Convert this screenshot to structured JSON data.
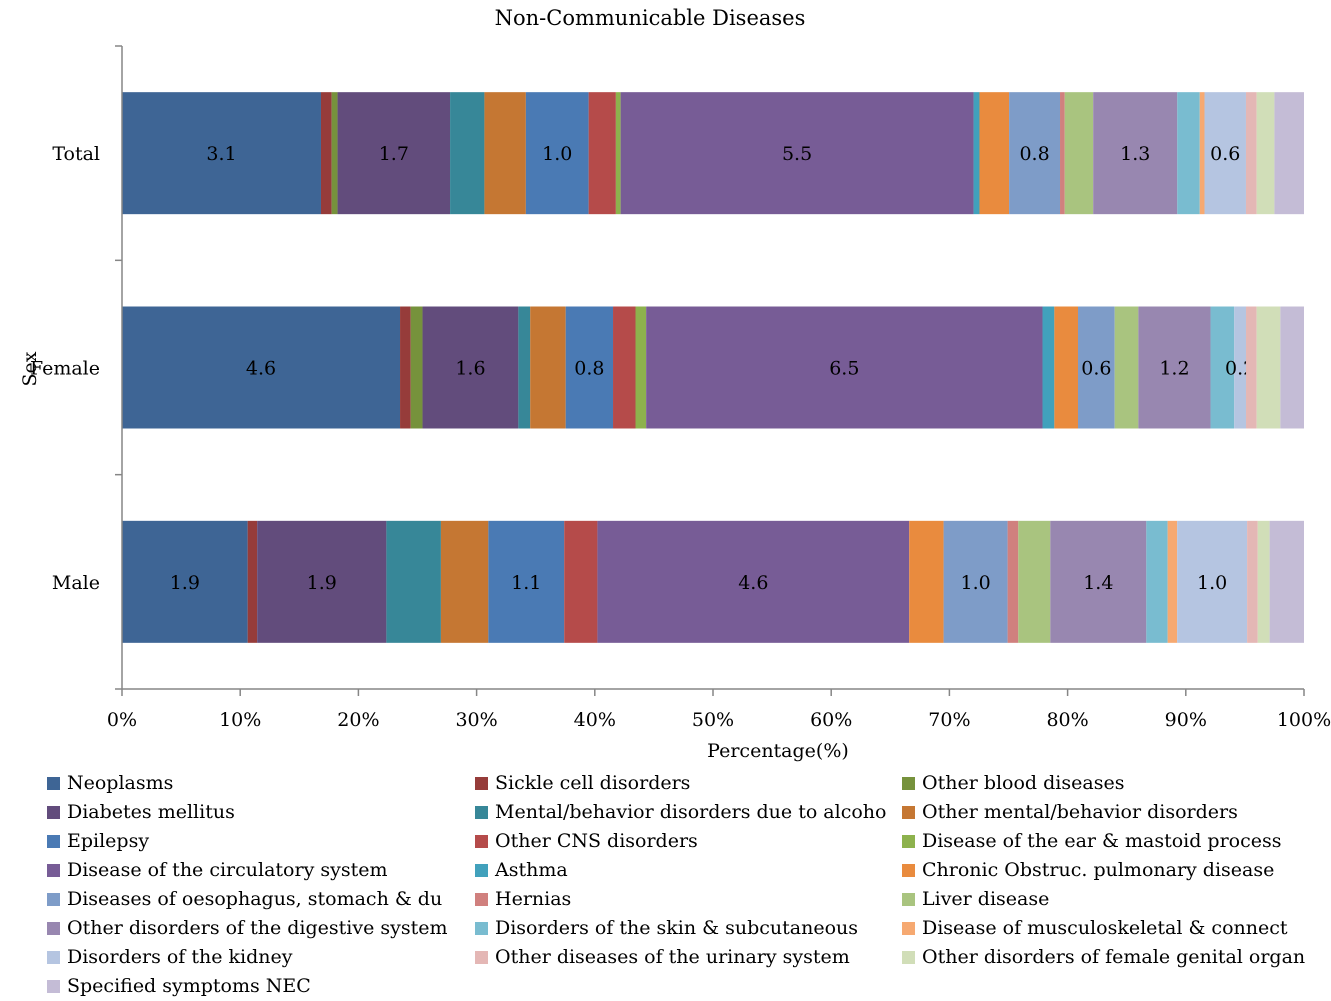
{
  "chart_data": {
    "type": "bar",
    "orientation": "horizontal",
    "stacked": "percent",
    "title": "Non-Communicable Diseases",
    "xlabel": "Percentage(%)",
    "ylabel": "Sex",
    "categories": [
      "Total",
      "Female",
      "Male"
    ],
    "x_ticks": [
      "0%",
      "10%",
      "20%",
      "30%",
      "40%",
      "50%",
      "60%",
      "70%",
      "80%",
      "90%",
      "100%"
    ],
    "xlim": [
      0,
      100
    ],
    "legend_position": "bottom",
    "series": [
      {
        "name": "Neoplasms",
        "color": "#3e6595",
        "values": [
          16.8,
          23.5,
          10.6
        ],
        "labels": [
          "3.1",
          "4.6",
          "1.9"
        ]
      },
      {
        "name": "Sickle cell disorders",
        "color": "#963c3a",
        "values": [
          0.9,
          0.9,
          0.8
        ],
        "labels": [
          "",
          "",
          ""
        ]
      },
      {
        "name": "Other blood diseases",
        "color": "#76923c",
        "values": [
          0.5,
          1.0,
          0
        ],
        "labels": [
          "",
          "",
          ""
        ]
      },
      {
        "name": "Diabetes mellitus",
        "color": "#624c7c",
        "values": [
          9.5,
          8.1,
          10.9
        ],
        "labels": [
          "1.7",
          "1.6",
          "1.9"
        ]
      },
      {
        "name": "Mental/behavior disorders due to alcoho",
        "color": "#378798",
        "values": [
          2.9,
          1.0,
          4.6
        ],
        "labels": [
          "",
          "",
          ""
        ]
      },
      {
        "name": "Other mental/behavior disorders",
        "color": "#c57733",
        "values": [
          3.5,
          3.0,
          4.0
        ],
        "labels": [
          "",
          "",
          ""
        ]
      },
      {
        "name": "Epilepsy",
        "color": "#4a7ab4",
        "values": [
          5.3,
          4.0,
          6.4
        ],
        "labels": [
          "1.0",
          "0.8",
          "1.1"
        ]
      },
      {
        "name": "Other CNS disorders",
        "color": "#b54b4a",
        "values": [
          2.3,
          1.9,
          2.8
        ],
        "labels": [
          "",
          "",
          ""
        ]
      },
      {
        "name": "Disease of the ear & mastoid process",
        "color": "#8db24d",
        "values": [
          0.4,
          0.9,
          0
        ],
        "labels": [
          "",
          "",
          ""
        ]
      },
      {
        "name": "Disease of the circulatory system",
        "color": "#775c96",
        "values": [
          29.8,
          33.5,
          26.3
        ],
        "labels": [
          "5.5",
          "6.5",
          "4.6"
        ]
      },
      {
        "name": "Asthma",
        "color": "#41a1bc",
        "values": [
          0.5,
          1.0,
          0
        ],
        "labels": [
          "",
          "",
          ""
        ]
      },
      {
        "name": "Chronic Obstruc. pulmonary disease",
        "color": "#e98b3e",
        "values": [
          2.5,
          2.0,
          2.9
        ],
        "labels": [
          "",
          "",
          ""
        ]
      },
      {
        "name": "Diseases of oesophagus, stomach & du",
        "color": "#7e9cc8",
        "values": [
          4.3,
          3.1,
          5.4
        ],
        "labels": [
          "0.8",
          "0.6",
          "1.0"
        ]
      },
      {
        "name": "Hernias",
        "color": "#d0807e",
        "values": [
          0.4,
          0,
          0.9
        ],
        "labels": [
          "",
          "",
          ""
        ]
      },
      {
        "name": "Liver disease",
        "color": "#a9c47f",
        "values": [
          2.4,
          2.0,
          2.7
        ],
        "labels": [
          "",
          "",
          ""
        ]
      },
      {
        "name": "Other disorders of the digestive system",
        "color": "#9887b0",
        "values": [
          7.1,
          6.1,
          8.1
        ],
        "labels": [
          "1.3",
          "1.2",
          "1.4"
        ]
      },
      {
        "name": "Disorders of the skin & subcutaneous",
        "color": "#79bcd0",
        "values": [
          1.9,
          2.0,
          1.8
        ],
        "labels": [
          "",
          "",
          ""
        ]
      },
      {
        "name": "Disease of musculoskeletal & connect",
        "color": "#f6a971",
        "values": [
          0.4,
          0,
          0.8
        ],
        "labels": [
          "",
          "",
          ""
        ]
      },
      {
        "name": "Disorders of the kidney",
        "color": "#b5c5e1",
        "values": [
          3.5,
          1.0,
          5.9
        ],
        "labels": [
          "0.6",
          "0.2",
          "1.0"
        ]
      },
      {
        "name": "Other diseases of the urinary system",
        "color": "#e4b7b5",
        "values": [
          0.9,
          0.9,
          0.9
        ],
        "labels": [
          "",
          "",
          ""
        ]
      },
      {
        "name": "Other disorders of female genital organ",
        "color": "#d1deb8",
        "values": [
          1.5,
          2.0,
          1.0
        ],
        "labels": [
          "",
          "",
          ""
        ]
      },
      {
        "name": "Specified symptoms NEC",
        "color": "#c4bcd6",
        "values": [
          2.5,
          2.0,
          2.9
        ],
        "labels": [
          "",
          "",
          ""
        ]
      }
    ]
  }
}
